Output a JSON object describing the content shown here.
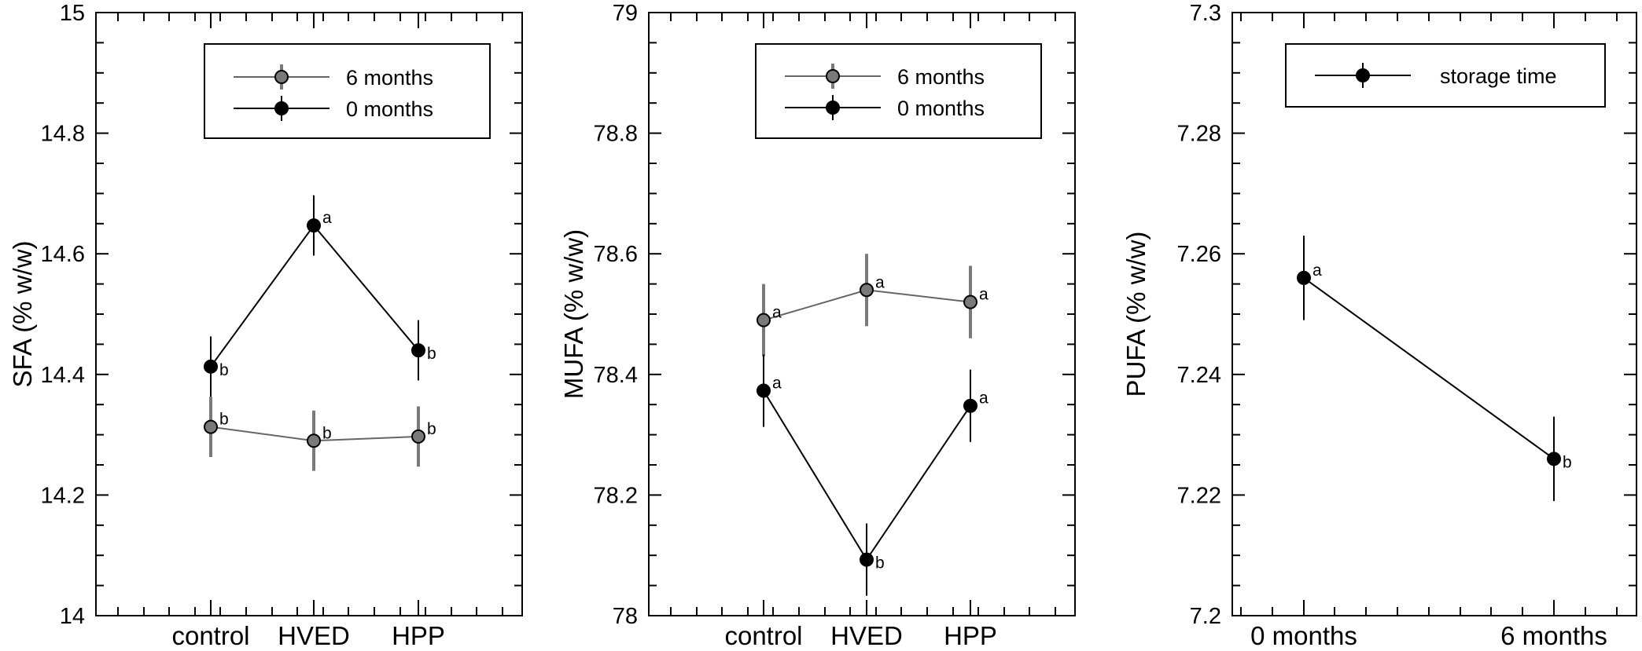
{
  "chart_data": [
    {
      "type": "line",
      "ylabel": "SFA (% w/w)",
      "ylim": [
        14,
        15
      ],
      "yticks": [
        "14",
        "14.2",
        "14.4",
        "14.6",
        "14.8",
        "15"
      ],
      "categories": [
        "control",
        "HVED",
        "HPP"
      ],
      "legend": "top-right",
      "series": [
        {
          "name": "6 months",
          "color": "#666666",
          "marker_color": "#7a7a7a",
          "values": [
            14.313,
            14.29,
            14.297
          ],
          "errors": [
            0.05,
            0.05,
            0.05
          ],
          "letters": [
            "b",
            "b",
            "b"
          ]
        },
        {
          "name": "0 months",
          "color": "#000000",
          "marker_color": "#000000",
          "values": [
            14.413,
            14.647,
            14.44
          ],
          "errors": [
            0.05,
            0.05,
            0.05
          ],
          "letters": [
            "b",
            "a",
            "b"
          ]
        }
      ]
    },
    {
      "type": "line",
      "ylabel": "MUFA (% w/w)",
      "ylim": [
        78,
        79
      ],
      "yticks": [
        "78",
        "78.2",
        "78.4",
        "78.6",
        "78.8",
        "79"
      ],
      "categories": [
        "control",
        "HVED",
        "HPP"
      ],
      "legend": "top-right",
      "series": [
        {
          "name": "6 months",
          "color": "#666666",
          "marker_color": "#7a7a7a",
          "values": [
            78.49,
            78.54,
            78.52
          ],
          "errors": [
            0.06,
            0.06,
            0.06
          ],
          "letters": [
            "a",
            "a",
            "a"
          ]
        },
        {
          "name": "0 months",
          "color": "#000000",
          "marker_color": "#000000",
          "values": [
            78.373,
            78.093,
            78.348
          ],
          "errors": [
            0.06,
            0.06,
            0.06
          ],
          "letters": [
            "a",
            "b",
            "a"
          ]
        }
      ]
    },
    {
      "type": "line",
      "ylabel": "PUFA (% w/w)",
      "ylim": [
        7.2,
        7.3
      ],
      "yticks": [
        "7.2",
        "7.22",
        "7.24",
        "7.26",
        "7.28",
        "7.3"
      ],
      "categories": [
        "0 months",
        "6 months"
      ],
      "legend": "top-right",
      "series": [
        {
          "name": "storage time",
          "color": "#000000",
          "marker_color": "#000000",
          "values": [
            7.256,
            7.226
          ],
          "errors": [
            0.007,
            0.007
          ],
          "letters": [
            "a",
            "b"
          ]
        }
      ]
    }
  ]
}
